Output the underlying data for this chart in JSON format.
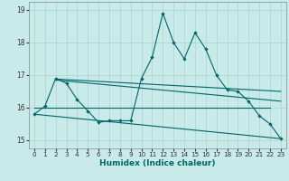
{
  "xlabel": "Humidex (Indice chaleur)",
  "xlim": [
    -0.5,
    23.5
  ],
  "ylim": [
    14.75,
    19.25
  ],
  "yticks": [
    15,
    16,
    17,
    18,
    19
  ],
  "xticks": [
    0,
    1,
    2,
    3,
    4,
    5,
    6,
    7,
    8,
    9,
    10,
    11,
    12,
    13,
    14,
    15,
    16,
    17,
    18,
    19,
    20,
    21,
    22,
    23
  ],
  "bg_color": "#c8eae8",
  "line_color": "#006666",
  "grid_color": "#aad4d0",
  "main_line": {
    "x": [
      0,
      1,
      2,
      3,
      4,
      5,
      6,
      7,
      8,
      9,
      10,
      11,
      12,
      13,
      14,
      15,
      16,
      17,
      18,
      19,
      20,
      21,
      22,
      23
    ],
    "y": [
      15.8,
      16.05,
      16.9,
      16.75,
      16.25,
      15.9,
      15.55,
      15.6,
      15.6,
      15.6,
      16.9,
      17.55,
      18.9,
      18.0,
      17.5,
      18.3,
      17.8,
      17.0,
      16.55,
      16.5,
      16.2,
      15.75,
      15.5,
      15.05
    ]
  },
  "straight_lines": [
    {
      "x": [
        2,
        23
      ],
      "y": [
        16.88,
        16.5
      ]
    },
    {
      "x": [
        2,
        23
      ],
      "y": [
        16.85,
        16.2
      ]
    },
    {
      "x": [
        0,
        22
      ],
      "y": [
        16.0,
        16.0
      ]
    },
    {
      "x": [
        0,
        23
      ],
      "y": [
        15.8,
        15.05
      ]
    }
  ]
}
